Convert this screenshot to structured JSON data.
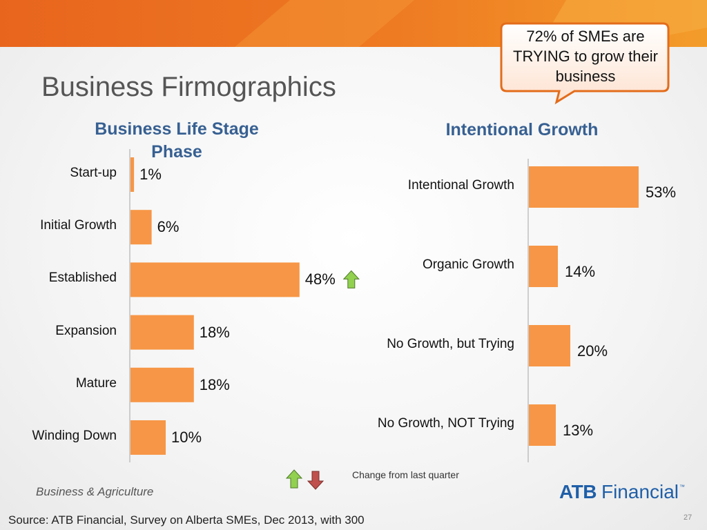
{
  "slide": {
    "title": "Business Firmographics",
    "callout": "72% of SMEs are TRYING to grow their business",
    "footer_note": "Business & Agriculture",
    "source": "Source: ATB Financial, Survey on Alberta SMEs, Dec 2013, with 300",
    "page_number": "27",
    "logo": {
      "bold": "ATB",
      "rest": "Financial",
      "tm": "™"
    }
  },
  "legend": {
    "label": "Change from last quarter"
  },
  "colors": {
    "bar": "#F79646",
    "up_arrow": "#92D050",
    "down_arrow": "#C0504D",
    "accent": "#E36C1A"
  },
  "chart_data": [
    {
      "type": "bar",
      "orientation": "horizontal",
      "title": "Business Life Stage Phase",
      "categories": [
        "Start-up",
        "Initial Growth",
        "Established",
        "Expansion",
        "Mature",
        "Winding Down"
      ],
      "values": [
        1,
        6,
        48,
        18,
        18,
        10
      ],
      "value_labels": [
        "1%",
        "6%",
        "48%",
        "18%",
        "18%",
        "10%"
      ],
      "change_indicators": [
        "",
        "",
        "up",
        "",
        "",
        ""
      ],
      "xlim": [
        0,
        100
      ]
    },
    {
      "type": "bar",
      "orientation": "horizontal",
      "title": "Intentional Growth",
      "categories": [
        "Intentional Growth",
        "Organic Growth",
        "No Growth, but Trying",
        "No Growth, NOT Trying"
      ],
      "values": [
        53,
        14,
        20,
        13
      ],
      "value_labels": [
        "53%",
        "14%",
        "20%",
        "13%"
      ],
      "xlim": [
        0,
        100
      ]
    }
  ]
}
